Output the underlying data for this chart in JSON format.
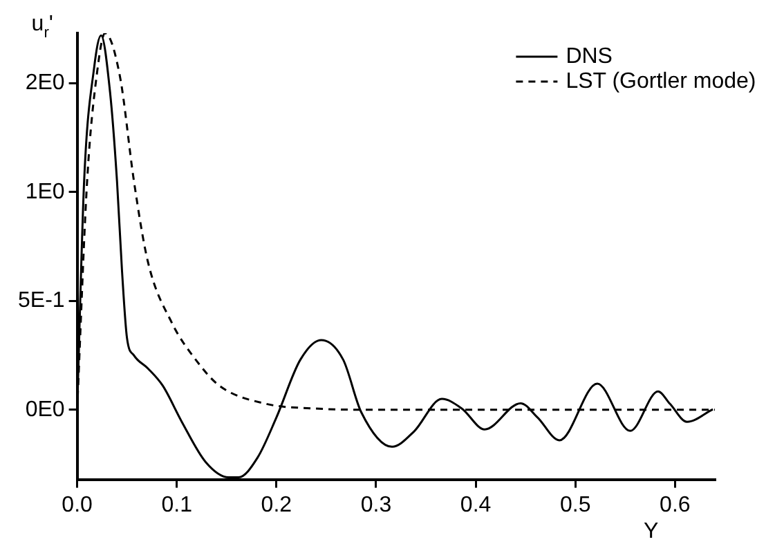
{
  "chart_data": {
    "type": "line",
    "xlabel": "Y",
    "ylabel": "u$_{r}$'",
    "xlim": [
      0,
      0.64
    ],
    "xticks": [
      {
        "value": 0,
        "label": "0.0"
      },
      {
        "value": 0.1,
        "label": "0.1"
      },
      {
        "value": 0.2,
        "label": "0.2"
      },
      {
        "value": 0.3,
        "label": "0.3"
      },
      {
        "value": 0.4,
        "label": "0.4"
      },
      {
        "value": 0.5,
        "label": "0.5"
      },
      {
        "value": 0.6,
        "label": "0.6"
      }
    ],
    "ylim": [
      -0.32,
      1.73
    ],
    "yticks": [
      {
        "value": 0,
        "label": "0E0"
      },
      {
        "value": 0.5,
        "label": "5E-1"
      },
      {
        "value": 1,
        "label": "1E0"
      },
      {
        "value": 1.5,
        "label": "2E0"
      }
    ],
    "grid": false,
    "legend": "top right",
    "marker": "none",
    "series": [
      {
        "name": "DNS",
        "color": "#000000",
        "line_style": "solid",
        "x": [
          0,
          0.007,
          0.017,
          0.024,
          0.033,
          0.04,
          0.045,
          0.05,
          0.057,
          0.071,
          0.086,
          0.105,
          0.129,
          0.152,
          0.162,
          0.181,
          0.2,
          0.224,
          0.245,
          0.267,
          0.285,
          0.316,
          0.338,
          0.366,
          0.386,
          0.409,
          0.445,
          0.462,
          0.484,
          0.522,
          0.555,
          0.583,
          0.595,
          0.612,
          0.638
        ],
        "values": [
          0,
          1.05,
          1.57,
          1.72,
          1.46,
          1.05,
          0.64,
          0.33,
          0.25,
          0.19,
          0.11,
          -0.055,
          -0.24,
          -0.31,
          -0.31,
          -0.22,
          -0.035,
          0.23,
          0.32,
          0.23,
          -0.01,
          -0.17,
          -0.1,
          0.05,
          0.006,
          -0.09,
          0.03,
          -0.035,
          -0.14,
          0.12,
          -0.097,
          0.084,
          0.027,
          -0.055,
          0.002
        ]
      },
      {
        "name": "LST (Gortler mode)",
        "color": "#000000",
        "line_style": "dashed",
        "x": [
          0,
          0.01,
          0.02,
          0.028,
          0.043,
          0.057,
          0.071,
          0.095,
          0.119,
          0.143,
          0.19,
          0.238,
          0.3,
          0.4,
          0.5,
          0.64
        ],
        "values": [
          0,
          1.05,
          1.55,
          1.73,
          1.53,
          1.05,
          0.68,
          0.4,
          0.23,
          0.11,
          0.027,
          0.006,
          0,
          0,
          0,
          0
        ]
      }
    ]
  }
}
